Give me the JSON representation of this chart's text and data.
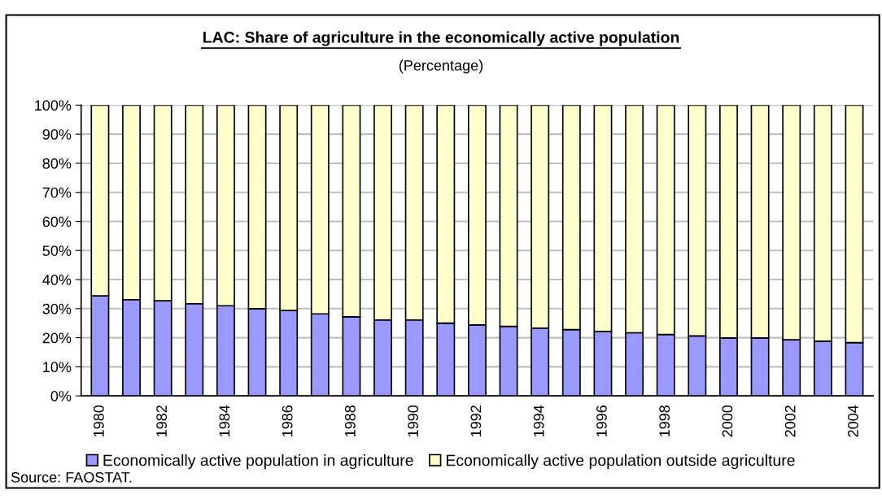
{
  "chart_data": {
    "type": "bar",
    "stacked": true,
    "title": "LAC: Share of agriculture in the economically active population",
    "subtitle": "(Percentage)",
    "categories": [
      "1980",
      null,
      "1982",
      null,
      "1984",
      null,
      "1986",
      null,
      "1988",
      null,
      "1990",
      null,
      "1992",
      null,
      "1994",
      null,
      "1996",
      null,
      "1998",
      null,
      "2000",
      null,
      "2002",
      null,
      "2004"
    ],
    "series": [
      {
        "name": "Economically active population in agriculture",
        "color": "#9999ff",
        "values": [
          34.4,
          33.1,
          32.7,
          31.7,
          31.0,
          30.0,
          29.4,
          28.2,
          27.2,
          26.1,
          26.1,
          25.0,
          24.4,
          23.9,
          23.3,
          22.8,
          22.2,
          21.7,
          21.1,
          20.6,
          19.9,
          19.9,
          19.3,
          18.8,
          18.3
        ]
      },
      {
        "name": "Economically active population outside agriculture",
        "color": "#ffffcc",
        "values": [
          65.6,
          66.9,
          67.3,
          68.3,
          69.0,
          70.0,
          70.6,
          71.8,
          72.8,
          73.9,
          73.9,
          75.0,
          75.6,
          76.1,
          76.7,
          77.2,
          77.8,
          78.3,
          78.9,
          79.4,
          80.1,
          80.1,
          80.7,
          81.2,
          81.7
        ]
      }
    ],
    "ylim": [
      0,
      100
    ],
    "yticks": [
      {
        "value": 0,
        "label": "0%"
      },
      {
        "value": 10,
        "label": "10%"
      },
      {
        "value": 20,
        "label": "20%"
      },
      {
        "value": 30,
        "label": "30%"
      },
      {
        "value": 40,
        "label": "40%"
      },
      {
        "value": 50,
        "label": "50%"
      },
      {
        "value": 60,
        "label": "60%"
      },
      {
        "value": 70,
        "label": "70%"
      },
      {
        "value": 80,
        "label": "80%"
      },
      {
        "value": 90,
        "label": "90%"
      },
      {
        "value": 100,
        "label": "100%"
      }
    ],
    "grid": "y",
    "legend": "bottom",
    "annotations": [
      "Source: FAOSTAT."
    ]
  }
}
